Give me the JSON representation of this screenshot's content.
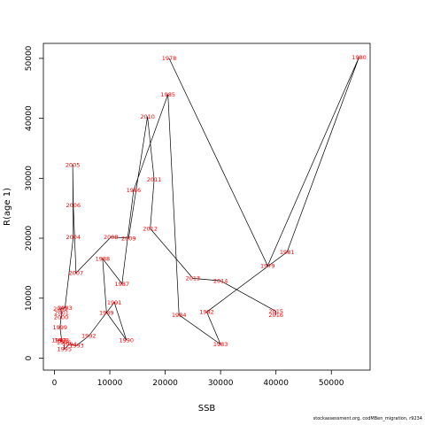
{
  "chart_data": {
    "type": "line",
    "xlabel": "SSB",
    "ylabel": "R(age 1)",
    "xlim": [
      -2000,
      57000
    ],
    "ylim": [
      -2000,
      52500
    ],
    "x_ticks": [
      0,
      10000,
      20000,
      30000,
      40000,
      50000
    ],
    "y_ticks": [
      0,
      10000,
      20000,
      30000,
      40000,
      50000
    ],
    "x_tick_labels": [
      "0",
      "10000",
      "20000",
      "30000",
      "40000",
      "50000"
    ],
    "y_tick_labels": [
      "0",
      "10000",
      "20000",
      "30000",
      "40000",
      "50000"
    ],
    "grid": false,
    "label_color": "#ff0000",
    "line_color": "#000000",
    "points": [
      {
        "year": "1978",
        "ssb": 20700,
        "r": 50000
      },
      {
        "year": "1979",
        "ssb": 38500,
        "r": 15400
      },
      {
        "year": "1980",
        "ssb": 55000,
        "r": 50200
      },
      {
        "year": "1981",
        "ssb": 42000,
        "r": 17700
      },
      {
        "year": "1982",
        "ssb": 27500,
        "r": 7700
      },
      {
        "year": "1983",
        "ssb": 30000,
        "r": 2300
      },
      {
        "year": "1984",
        "ssb": 22500,
        "r": 7200
      },
      {
        "year": "1985",
        "ssb": 20500,
        "r": 44000
      },
      {
        "year": "1986",
        "ssb": 14300,
        "r": 28000
      },
      {
        "year": "1987",
        "ssb": 12200,
        "r": 12400
      },
      {
        "year": "1988",
        "ssb": 8700,
        "r": 16600
      },
      {
        "year": "1989",
        "ssb": 9400,
        "r": 7600
      },
      {
        "year": "1990",
        "ssb": 13000,
        "r": 3000
      },
      {
        "year": "1991",
        "ssb": 10800,
        "r": 9300
      },
      {
        "year": "1992",
        "ssb": 6200,
        "r": 3700
      },
      {
        "year": "1993",
        "ssb": 4000,
        "r": 2100
      },
      {
        "year": "1994",
        "ssb": 2700,
        "r": 2300
      },
      {
        "year": "1995",
        "ssb": 1800,
        "r": 1500
      },
      {
        "year": "1996",
        "ssb": 1700,
        "r": 2600
      },
      {
        "year": "1997",
        "ssb": 800,
        "r": 3000
      },
      {
        "year": "1998",
        "ssb": 1300,
        "r": 3000
      },
      {
        "year": "1999",
        "ssb": 1000,
        "r": 5100
      },
      {
        "year": "2000",
        "ssb": 1200,
        "r": 6800
      },
      {
        "year": "2001",
        "ssb": 1300,
        "r": 7600
      },
      {
        "year": "2002",
        "ssb": 1100,
        "r": 8200
      },
      {
        "year": "2003",
        "ssb": 1900,
        "r": 8400
      },
      {
        "year": "2004",
        "ssb": 3400,
        "r": 20200
      },
      {
        "year": "2005",
        "ssb": 3300,
        "r": 32200
      },
      {
        "year": "2006",
        "ssb": 3400,
        "r": 25500
      },
      {
        "year": "2007",
        "ssb": 3900,
        "r": 14200
      },
      {
        "year": "2008",
        "ssb": 10200,
        "r": 20200
      },
      {
        "year": "2009",
        "ssb": 13400,
        "r": 20000
      },
      {
        "year": "2010",
        "ssb": 16800,
        "r": 40300
      },
      {
        "year": "2011",
        "ssb": 18000,
        "r": 29800
      },
      {
        "year": "2012",
        "ssb": 17300,
        "r": 21600
      },
      {
        "year": "2013",
        "ssb": 25000,
        "r": 13300
      },
      {
        "year": "2014",
        "ssb": 30000,
        "r": 12900
      },
      {
        "year": "2015",
        "ssb": 40000,
        "r": 7800
      },
      {
        "year": "2016",
        "ssb": 40000,
        "r": 7200
      }
    ]
  },
  "footer": "stockassessment.org, codMBen_migration, r9234"
}
